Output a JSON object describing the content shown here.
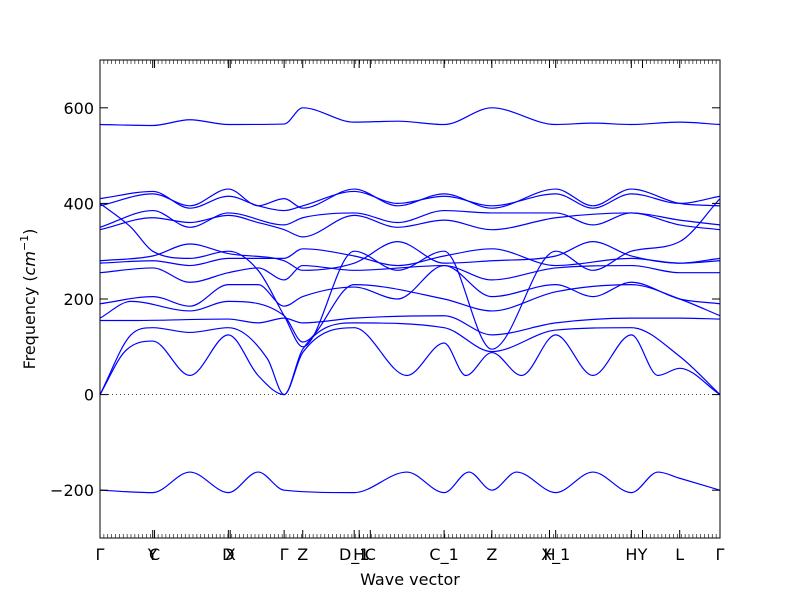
{
  "chart_data": {
    "type": "line",
    "title": "",
    "xlabel": "Wave vector",
    "ylabel_text": "Frequency (",
    "ylabel_unit_base": "cm",
    "ylabel_unit_exp": "−1",
    "ylabel_close": ")",
    "ylim": [
      -300,
      700
    ],
    "yticks": [
      -200,
      0,
      200,
      400,
      600
    ],
    "ytick_labels": [
      "−200",
      "0",
      "200",
      "400",
      "600"
    ],
    "x_range": [
      0,
      1
    ],
    "kpoints": [
      {
        "label": "Γ",
        "x": 0.0
      },
      {
        "label": "Y",
        "x": 0.085
      },
      {
        "label": "C",
        "x": 0.088
      },
      {
        "label": "D",
        "x": 0.207
      },
      {
        "label": "X",
        "x": 0.21
      },
      {
        "label": "Γ",
        "x": 0.297
      },
      {
        "label": "Z",
        "x": 0.327
      },
      {
        "label": "D_1",
        "x": 0.41
      },
      {
        "label": "H",
        "x": 0.418
      },
      {
        "label": "C",
        "x": 0.436
      },
      {
        "label": "C_1",
        "x": 0.555
      },
      {
        "label": "Z",
        "x": 0.632
      },
      {
        "label": "H",
        "x": 0.725
      },
      {
        "label": "X_1",
        "x": 0.735
      },
      {
        "label": "H",
        "x": 0.857
      },
      {
        "label": "Y",
        "x": 0.875
      },
      {
        "label": "L",
        "x": 0.935
      },
      {
        "label": "Γ",
        "x": 1.0
      }
    ],
    "zero_line": true,
    "line_color": "#0000ff",
    "series": [
      {
        "points": [
          [
            0,
            -200
          ],
          [
            0.085,
            -205
          ],
          [
            0.145,
            -162
          ],
          [
            0.207,
            -205
          ],
          [
            0.255,
            -162
          ],
          [
            0.297,
            -200
          ],
          [
            0.41,
            -205
          ],
          [
            0.495,
            -162
          ],
          [
            0.555,
            -205
          ],
          [
            0.595,
            -162
          ],
          [
            0.632,
            -200
          ],
          [
            0.672,
            -162
          ],
          [
            0.735,
            -205
          ],
          [
            0.795,
            -162
          ],
          [
            0.857,
            -205
          ],
          [
            0.9,
            -162
          ],
          [
            0.935,
            -175
          ],
          [
            1,
            -200
          ]
        ]
      },
      {
        "points": [
          [
            0,
            0
          ],
          [
            0.04,
            90
          ],
          [
            0.085,
            112
          ],
          [
            0.145,
            40
          ],
          [
            0.207,
            125
          ],
          [
            0.255,
            40
          ],
          [
            0.297,
            0
          ],
          [
            0.327,
            88
          ],
          [
            0.41,
            140
          ],
          [
            0.495,
            40
          ],
          [
            0.555,
            108
          ],
          [
            0.59,
            40
          ],
          [
            0.632,
            88
          ],
          [
            0.68,
            40
          ],
          [
            0.735,
            125
          ],
          [
            0.795,
            40
          ],
          [
            0.857,
            125
          ],
          [
            0.9,
            40
          ],
          [
            0.935,
            55
          ],
          [
            1,
            0
          ]
        ]
      },
      {
        "points": [
          [
            0,
            0
          ],
          [
            0.05,
            125
          ],
          [
            0.085,
            140
          ],
          [
            0.145,
            130
          ],
          [
            0.207,
            140
          ],
          [
            0.27,
            75
          ],
          [
            0.297,
            0
          ],
          [
            0.327,
            95
          ],
          [
            0.41,
            150
          ],
          [
            0.555,
            140
          ],
          [
            0.632,
            90
          ],
          [
            0.735,
            135
          ],
          [
            0.857,
            140
          ],
          [
            0.935,
            80
          ],
          [
            1,
            0
          ]
        ]
      },
      {
        "points": [
          [
            0,
            155
          ],
          [
            0.05,
            155
          ],
          [
            0.207,
            158
          ],
          [
            0.255,
            150
          ],
          [
            0.297,
            160
          ],
          [
            0.327,
            150
          ],
          [
            0.41,
            160
          ],
          [
            0.555,
            165
          ],
          [
            0.632,
            125
          ],
          [
            0.735,
            150
          ],
          [
            0.857,
            160
          ],
          [
            0.935,
            160
          ],
          [
            1,
            158
          ]
        ]
      },
      {
        "points": [
          [
            0,
            160
          ],
          [
            0.05,
            195
          ],
          [
            0.145,
            175
          ],
          [
            0.207,
            195
          ],
          [
            0.297,
            165
          ],
          [
            0.327,
            110
          ],
          [
            0.41,
            230
          ],
          [
            0.555,
            200
          ],
          [
            0.632,
            175
          ],
          [
            0.735,
            215
          ],
          [
            0.857,
            230
          ],
          [
            0.935,
            200
          ],
          [
            1,
            165
          ]
        ]
      },
      {
        "points": [
          [
            0,
            190
          ],
          [
            0.085,
            205
          ],
          [
            0.145,
            185
          ],
          [
            0.207,
            230
          ],
          [
            0.255,
            230
          ],
          [
            0.297,
            185
          ],
          [
            0.327,
            205
          ],
          [
            0.41,
            225
          ],
          [
            0.48,
            200
          ],
          [
            0.555,
            270
          ],
          [
            0.632,
            205
          ],
          [
            0.735,
            230
          ],
          [
            0.795,
            205
          ],
          [
            0.857,
            235
          ],
          [
            0.935,
            200
          ],
          [
            1,
            190
          ]
        ]
      },
      {
        "points": [
          [
            0,
            255
          ],
          [
            0.085,
            265
          ],
          [
            0.145,
            235
          ],
          [
            0.207,
            255
          ],
          [
            0.255,
            265
          ],
          [
            0.297,
            240
          ],
          [
            0.327,
            270
          ],
          [
            0.41,
            260
          ],
          [
            0.555,
            270
          ],
          [
            0.632,
            240
          ],
          [
            0.735,
            265
          ],
          [
            0.857,
            270
          ],
          [
            0.935,
            255
          ],
          [
            1,
            255
          ]
        ]
      },
      {
        "points": [
          [
            0,
            275
          ],
          [
            0.085,
            280
          ],
          [
            0.145,
            270
          ],
          [
            0.207,
            285
          ],
          [
            0.297,
            285
          ],
          [
            0.327,
            305
          ],
          [
            0.41,
            290
          ],
          [
            0.48,
            270
          ],
          [
            0.555,
            290
          ],
          [
            0.632,
            305
          ],
          [
            0.735,
            270
          ],
          [
            0.857,
            285
          ],
          [
            0.935,
            275
          ],
          [
            1,
            280
          ]
        ]
      },
      {
        "points": [
          [
            0,
            280
          ],
          [
            0.085,
            290
          ],
          [
            0.145,
            315
          ],
          [
            0.207,
            295
          ],
          [
            0.297,
            280
          ],
          [
            0.327,
            260
          ],
          [
            0.41,
            275
          ],
          [
            0.48,
            320
          ],
          [
            0.555,
            275
          ],
          [
            0.632,
            280
          ],
          [
            0.735,
            290
          ],
          [
            0.795,
            320
          ],
          [
            0.857,
            290
          ],
          [
            0.935,
            275
          ],
          [
            1,
            285
          ]
        ]
      },
      {
        "points": [
          [
            0,
            345
          ],
          [
            0.085,
            370
          ],
          [
            0.145,
            360
          ],
          [
            0.207,
            375
          ],
          [
            0.255,
            360
          ],
          [
            0.297,
            345
          ],
          [
            0.327,
            330
          ],
          [
            0.41,
            375
          ],
          [
            0.48,
            350
          ],
          [
            0.555,
            365
          ],
          [
            0.632,
            345
          ],
          [
            0.735,
            370
          ],
          [
            0.857,
            380
          ],
          [
            0.935,
            355
          ],
          [
            1,
            345
          ]
        ]
      },
      {
        "points": [
          [
            0,
            350
          ],
          [
            0.085,
            385
          ],
          [
            0.145,
            350
          ],
          [
            0.207,
            380
          ],
          [
            0.297,
            355
          ],
          [
            0.327,
            370
          ],
          [
            0.41,
            380
          ],
          [
            0.48,
            360
          ],
          [
            0.555,
            385
          ],
          [
            0.632,
            380
          ],
          [
            0.735,
            380
          ],
          [
            0.795,
            355
          ],
          [
            0.857,
            380
          ],
          [
            0.935,
            365
          ],
          [
            1,
            355
          ]
        ]
      },
      {
        "points": [
          [
            0,
            395
          ],
          [
            0.085,
            420
          ],
          [
            0.145,
            395
          ],
          [
            0.207,
            430
          ],
          [
            0.255,
            395
          ],
          [
            0.297,
            410
          ],
          [
            0.327,
            390
          ],
          [
            0.41,
            430
          ],
          [
            0.48,
            395
          ],
          [
            0.555,
            420
          ],
          [
            0.632,
            390
          ],
          [
            0.735,
            430
          ],
          [
            0.795,
            395
          ],
          [
            0.857,
            430
          ],
          [
            0.935,
            400
          ],
          [
            1,
            395
          ]
        ]
      },
      {
        "points": [
          [
            0,
            410
          ],
          [
            0.085,
            425
          ],
          [
            0.145,
            390
          ],
          [
            0.207,
            415
          ],
          [
            0.255,
            395
          ],
          [
            0.297,
            385
          ],
          [
            0.327,
            395
          ],
          [
            0.41,
            425
          ],
          [
            0.48,
            400
          ],
          [
            0.555,
            415
          ],
          [
            0.632,
            395
          ],
          [
            0.735,
            420
          ],
          [
            0.795,
            390
          ],
          [
            0.857,
            420
          ],
          [
            0.935,
            400
          ],
          [
            1,
            415
          ]
        ]
      },
      {
        "points": [
          [
            0,
            400
          ],
          [
            0.05,
            350
          ],
          [
            0.085,
            300
          ],
          [
            0.145,
            285
          ],
          [
            0.207,
            300
          ],
          [
            0.255,
            260
          ],
          [
            0.297,
            165
          ],
          [
            0.327,
            100
          ],
          [
            0.41,
            300
          ],
          [
            0.48,
            260
          ],
          [
            0.555,
            300
          ],
          [
            0.632,
            95
          ],
          [
            0.735,
            300
          ],
          [
            0.795,
            260
          ],
          [
            0.857,
            300
          ],
          [
            0.935,
            320
          ],
          [
            1,
            410
          ]
        ]
      },
      {
        "points": [
          [
            0,
            565
          ],
          [
            0.085,
            563
          ],
          [
            0.145,
            575
          ],
          [
            0.207,
            565
          ],
          [
            0.297,
            566
          ],
          [
            0.327,
            600
          ],
          [
            0.41,
            570
          ],
          [
            0.48,
            572
          ],
          [
            0.555,
            565
          ],
          [
            0.632,
            600
          ],
          [
            0.735,
            565
          ],
          [
            0.795,
            568
          ],
          [
            0.857,
            565
          ],
          [
            0.935,
            570
          ],
          [
            1,
            565
          ]
        ]
      }
    ]
  }
}
